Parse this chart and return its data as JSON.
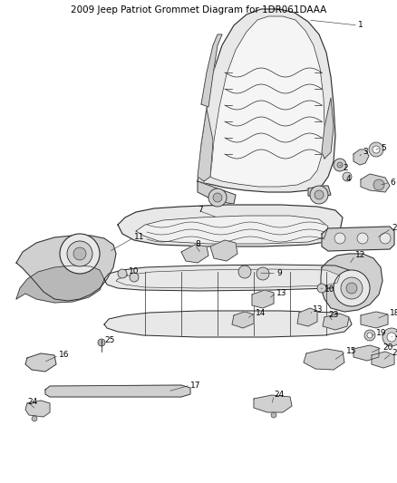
{
  "title_text": "2009 Jeep Patriot Grommet Diagram for 1DR061DAAA",
  "background_color": "#ffffff",
  "figsize": [
    4.38,
    5.33
  ],
  "dpi": 100,
  "title_fontsize": 7.5,
  "label_fontsize": 6.5,
  "line_color": "#2a2a2a",
  "fill_color": "#e8e8e8",
  "fill_mid": "#d0d0d0",
  "fill_dark": "#b8b8b8"
}
